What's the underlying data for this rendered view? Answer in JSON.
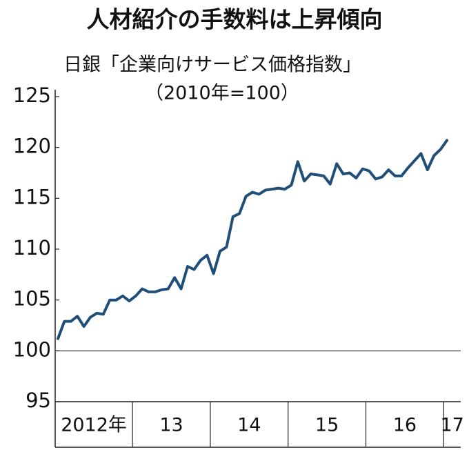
{
  "chart_data": {
    "type": "line",
    "title": "人材紹介の手数料は上昇傾向",
    "subtitle": "日銀「企業向けサービス価格指数」",
    "subtitle2": "（2010年=100）",
    "categories": [
      "2012年",
      null,
      null,
      null,
      null,
      null,
      null,
      null,
      null,
      null,
      null,
      null,
      "13",
      null,
      null,
      null,
      null,
      null,
      null,
      null,
      null,
      null,
      null,
      null,
      "14",
      null,
      null,
      null,
      null,
      null,
      null,
      null,
      null,
      null,
      null,
      null,
      "15",
      null,
      null,
      null,
      null,
      null,
      null,
      null,
      null,
      null,
      null,
      null,
      "16",
      null,
      null,
      null,
      null,
      null,
      null,
      null,
      null,
      null,
      null,
      null,
      "17"
    ],
    "series": [
      {
        "color": "#1f4e79",
        "values": [
          101.2,
          102.9,
          102.9,
          103.4,
          102.4,
          103.3,
          103.7,
          103.6,
          105.0,
          105.0,
          105.4,
          104.9,
          105.4,
          106.1,
          105.8,
          105.8,
          106.0,
          106.1,
          107.2,
          106.1,
          108.3,
          108.0,
          108.9,
          109.4,
          107.6,
          109.8,
          110.2,
          113.2,
          113.5,
          115.2,
          115.6,
          115.4,
          115.8,
          115.9,
          116.0,
          115.9,
          116.3,
          118.6,
          116.7,
          117.4,
          117.3,
          117.2,
          116.4,
          118.4,
          117.4,
          117.5,
          117.0,
          117.9,
          117.7,
          116.9,
          117.1,
          117.8,
          117.2,
          117.2,
          118.0,
          118.7,
          119.4,
          117.8,
          119.2,
          119.8,
          120.7
        ]
      }
    ],
    "ylim": [
      95,
      125
    ],
    "yticks": [
      95,
      100,
      105,
      110,
      115,
      120,
      125
    ],
    "reference_line": 100
  }
}
